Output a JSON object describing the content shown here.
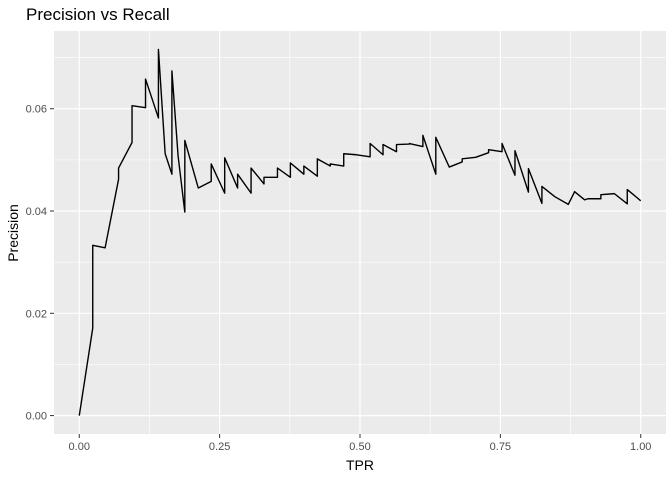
{
  "chart_data": {
    "type": "line",
    "title": "Precision vs Recall",
    "xlabel": "TPR",
    "ylabel": "Precision",
    "xlim": [
      -0.045,
      1.045
    ],
    "ylim": [
      -0.0036,
      0.0752
    ],
    "x_ticks": [
      0.0,
      0.25,
      0.5,
      0.75,
      1.0
    ],
    "x_tick_labels": [
      "0.00",
      "0.25",
      "0.50",
      "0.75",
      "1.00"
    ],
    "y_ticks": [
      0.0,
      0.02,
      0.04,
      0.06
    ],
    "y_tick_labels": [
      "0.00",
      "0.02",
      "0.04",
      "0.06"
    ],
    "grid": true,
    "legend": "none",
    "colors": {
      "panel": "#ebebeb",
      "grid": "#ffffff",
      "line": "#000000"
    },
    "series": [
      {
        "x": [
          0.0,
          0.024,
          0.024,
          0.046,
          0.07,
          0.07,
          0.094,
          0.094,
          0.118,
          0.118,
          0.141,
          0.141,
          0.153,
          0.165,
          0.165,
          0.176,
          0.188,
          0.188,
          0.212,
          0.235,
          0.235,
          0.259,
          0.259,
          0.282,
          0.282,
          0.306,
          0.306,
          0.329,
          0.329,
          0.353,
          0.353,
          0.376,
          0.376,
          0.4,
          0.4,
          0.424,
          0.424,
          0.447,
          0.447,
          0.471,
          0.471,
          0.494,
          0.518,
          0.518,
          0.541,
          0.541,
          0.565,
          0.565,
          0.588,
          0.588,
          0.612,
          0.612,
          0.635,
          0.635,
          0.659,
          0.682,
          0.682,
          0.706,
          0.729,
          0.729,
          0.753,
          0.753,
          0.776,
          0.776,
          0.8,
          0.8,
          0.824,
          0.824,
          0.847,
          0.871,
          0.882,
          0.882,
          0.9,
          0.906,
          0.929,
          0.929,
          0.953,
          0.976,
          0.976,
          1.0
        ],
        "y": [
          0.0,
          0.0171,
          0.0333,
          0.0328,
          0.0462,
          0.0484,
          0.0534,
          0.0606,
          0.0602,
          0.0658,
          0.0582,
          0.0716,
          0.0512,
          0.0472,
          0.0674,
          0.0508,
          0.0398,
          0.0538,
          0.0445,
          0.0458,
          0.0492,
          0.0435,
          0.0504,
          0.0445,
          0.0472,
          0.0435,
          0.0484,
          0.0453,
          0.0466,
          0.0466,
          0.0484,
          0.0466,
          0.0494,
          0.0472,
          0.0488,
          0.0468,
          0.0502,
          0.0488,
          0.0492,
          0.0488,
          0.0512,
          0.051,
          0.0506,
          0.0532,
          0.051,
          0.053,
          0.0516,
          0.053,
          0.0531,
          0.0532,
          0.0526,
          0.0548,
          0.0472,
          0.0544,
          0.0486,
          0.0496,
          0.0502,
          0.0505,
          0.0514,
          0.052,
          0.0516,
          0.0532,
          0.047,
          0.0518,
          0.0437,
          0.0483,
          0.0415,
          0.0448,
          0.0428,
          0.0413,
          0.0437,
          0.0438,
          0.0422,
          0.0424,
          0.0424,
          0.0432,
          0.0434,
          0.0414,
          0.0442,
          0.042
        ]
      }
    ]
  }
}
